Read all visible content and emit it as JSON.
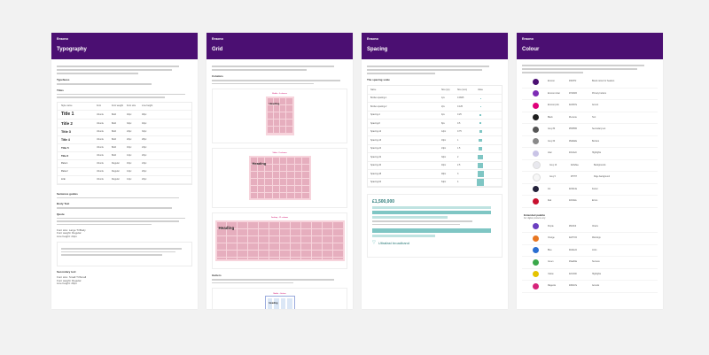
{
  "brand": "Ensono",
  "panels": {
    "typography": {
      "title": "Typography",
      "sections": [
        "Typefaces",
        "Titles",
        "Sentence guides",
        "Body Text",
        "Quote",
        "Secondary text"
      ],
      "table_headers": [
        "Style name",
        "Font",
        "Font weight",
        "Font size",
        "Line height"
      ],
      "rows": [
        {
          "name": "Title 1",
          "font": "Ubuntu",
          "weight": "Bold",
          "size": "40px",
          "lh": "48px"
        },
        {
          "name": "Title 2",
          "font": "Ubuntu",
          "weight": "Bold",
          "size": "32px",
          "lh": "40px"
        },
        {
          "name": "Title 3",
          "font": "Ubuntu",
          "weight": "Bold",
          "size": "24px",
          "lh": "32px"
        },
        {
          "name": "Title 4",
          "font": "Ubuntu",
          "weight": "Bold",
          "size": "20px",
          "lh": "28px"
        },
        {
          "name": "Title 5",
          "font": "Ubuntu",
          "weight": "Bold",
          "size": "16px",
          "lh": "24px"
        },
        {
          "name": "Title 6",
          "font": "Ubuntu",
          "weight": "Bold",
          "size": "14px",
          "lh": "20px"
        },
        {
          "name": "Para 1",
          "font": "Ubuntu",
          "weight": "Regular",
          "size": "16px",
          "lh": "24px"
        },
        {
          "name": "Para 2",
          "font": "Ubuntu",
          "weight": "Regular",
          "size": "14px",
          "lh": "20px"
        },
        {
          "name": "Link",
          "font": "Ubuntu",
          "weight": "Regular",
          "size": "14px",
          "lh": "20px"
        }
      ],
      "quote_lines": [
        "Font size: Large Tr/Body",
        "Font weight: Regular",
        "Line height: 24px"
      ],
      "secondary_lines": [
        "Font size: Small Tr/Small",
        "Font weight: Regular",
        "Line height: 20px"
      ]
    },
    "grid": {
      "title": "Grid",
      "sections": [
        "Columns",
        "Gutters"
      ],
      "heading_sample": "Heading",
      "grid_labels": [
        "Mobile - 4 columns",
        "Tablet - 8 columns",
        "Desktop - 12 columns",
        "Mobile - Gutters"
      ]
    },
    "spacing": {
      "title": "Spacing",
      "section": "The spacing scale",
      "table_headers": [
        "Name",
        "Size (px)",
        "Size (rem)",
        "Value"
      ],
      "rows": [
        {
          "name": "Border-spacing-1",
          "px": "1px",
          "rem": "0.0625"
        },
        {
          "name": "Border-spacing-2",
          "px": "2px",
          "rem": "0.125"
        },
        {
          "name": "Spacing-4",
          "px": "4px",
          "rem": "0.25"
        },
        {
          "name": "Spacing-8",
          "px": "8px",
          "rem": "0.5"
        },
        {
          "name": "Spacing-12",
          "px": "12px",
          "rem": "0.75"
        },
        {
          "name": "Spacing-16",
          "px": "16px",
          "rem": "1"
        },
        {
          "name": "Spacing-24",
          "px": "24px",
          "rem": "1.5"
        },
        {
          "name": "Spacing-32",
          "px": "32px",
          "rem": "2"
        },
        {
          "name": "Spacing-40",
          "px": "40px",
          "rem": "2.5"
        },
        {
          "name": "Spacing-48",
          "px": "48px",
          "rem": "3"
        },
        {
          "name": "Spacing-64",
          "px": "64px",
          "rem": "4"
        }
      ],
      "sample_number": "£1,500,000",
      "sample_name": "Ultrafast broadband"
    },
    "colour": {
      "title": "Colour",
      "section2": "Extended palette",
      "section2_sub": "For digital products only",
      "primary": [
        {
          "color": "#4b0f72",
          "name": "Ensono",
          "hex": "#4b0f72",
          "use": "Brand colour for headers"
        },
        {
          "color": "#7d2bb5",
          "name": "Ensono violet",
          "hex": "#7d2bb5",
          "use": "Primary buttons"
        },
        {
          "color": "#e0007a",
          "name": "Ensono pink",
          "hex": "#e0007a",
          "use": "Accent"
        },
        {
          "color": "#1e1e1e",
          "name": "Black",
          "hex": "#1e1e1e",
          "use": "Text"
        },
        {
          "color": "#555555",
          "name": "Grey 80",
          "hex": "#555555",
          "use": "Secondary text"
        },
        {
          "color": "#8a8a8a",
          "name": "Grey 60",
          "hex": "#8a8a8a",
          "use": "Borders"
        },
        {
          "color": "#c9c4e6",
          "name": "Lilac",
          "hex": "#c9c4e6",
          "use": "Highlights"
        },
        {
          "color": "#e8e8ee",
          "name": "Grey 10",
          "hex": "#e8e8ee",
          "use": "Backgrounds"
        },
        {
          "color": "#f7f7f7",
          "name": "Grey 5",
          "hex": "#f7f7f7",
          "use": "Page background"
        },
        {
          "color": "#23213a",
          "name": "Ink",
          "hex": "#23213a",
          "use": "Footer"
        },
        {
          "color": "#c8102e",
          "name": "Red",
          "hex": "#c8102e",
          "use": "Errors"
        }
      ],
      "extended": [
        {
          "color": "#6b3fc0",
          "name": "Purple",
          "hex": "#6b3fc0",
          "use": "Charts"
        },
        {
          "color": "#e87722",
          "name": "Orange",
          "hex": "#e87722",
          "use": "Warnings"
        },
        {
          "color": "#2a6ed1",
          "name": "Blue",
          "hex": "#2a6ed1",
          "use": "Links"
        },
        {
          "color": "#3aa84a",
          "name": "Green",
          "hex": "#3aa84a",
          "use": "Success"
        },
        {
          "color": "#e5c300",
          "name": "Yellow",
          "hex": "#e5c300",
          "use": "Highlights"
        },
        {
          "color": "#d6247a",
          "name": "Magenta",
          "hex": "#d6247a",
          "use": "Accents"
        }
      ]
    }
  }
}
